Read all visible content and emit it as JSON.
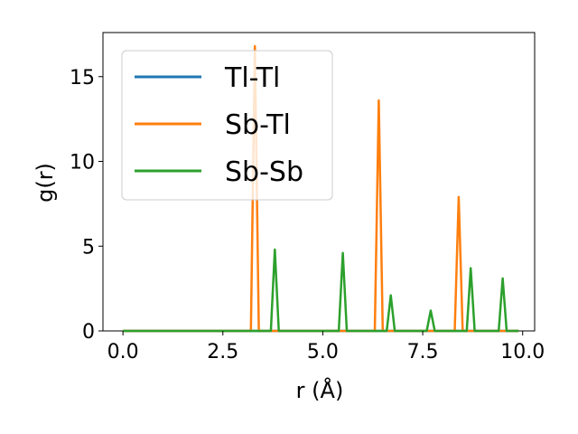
{
  "chart_data": {
    "type": "line",
    "title": "",
    "xlabel": "r (Å)",
    "ylabel": "g(r)",
    "xlim": [
      -0.5,
      10.3
    ],
    "ylim": [
      0,
      17.6
    ],
    "xticks": [
      0.0,
      2.5,
      5.0,
      7.5,
      10.0
    ],
    "xtick_labels": [
      "0.0",
      "2.5",
      "5.0",
      "7.5",
      "10.0"
    ],
    "yticks": [
      0,
      5,
      10,
      15
    ],
    "ytick_labels": [
      "0",
      "5",
      "10",
      "15"
    ],
    "grid": false,
    "legend": {
      "position": "top-left"
    },
    "series": [
      {
        "name": "Tl-Tl",
        "color": "#1f77b4",
        "x": [
          0.0,
          9.9
        ],
        "y": [
          0,
          0
        ]
      },
      {
        "name": "Sb-Tl",
        "color": "#ff7f0e",
        "x": [
          0.0,
          3.2,
          3.3,
          3.4,
          6.3,
          6.4,
          6.5,
          8.3,
          8.4,
          8.5,
          9.9
        ],
        "y": [
          0,
          0,
          16.8,
          0,
          0,
          13.6,
          0,
          0,
          7.9,
          0,
          0
        ]
      },
      {
        "name": "Sb-Sb",
        "color": "#2ca02c",
        "x": [
          0.0,
          3.7,
          3.8,
          3.9,
          5.4,
          5.5,
          5.6,
          6.6,
          6.7,
          6.8,
          7.6,
          7.7,
          7.8,
          8.6,
          8.7,
          8.8,
          9.4,
          9.5,
          9.6,
          9.9
        ],
        "y": [
          0,
          0,
          4.8,
          0,
          0,
          4.6,
          0,
          0,
          2.1,
          0,
          0,
          1.2,
          0,
          0,
          3.7,
          0,
          0,
          3.1,
          0,
          0
        ]
      }
    ]
  }
}
